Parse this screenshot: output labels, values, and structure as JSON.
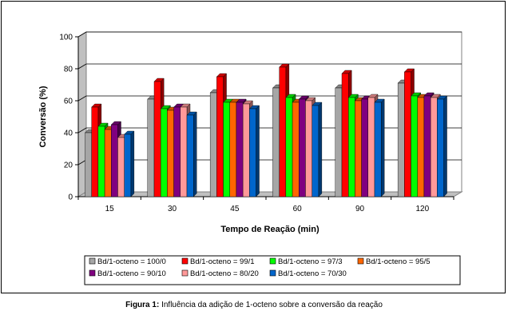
{
  "chart_data": {
    "type": "bar",
    "style": "3d-clustered-column",
    "xlabel": "Tempo de Reação (min)",
    "ylabel": "Conversão (%)",
    "ylim": [
      0,
      100
    ],
    "yticks": [
      0,
      20,
      40,
      60,
      80,
      100
    ],
    "categories": [
      "15",
      "30",
      "45",
      "60",
      "90",
      "120"
    ],
    "legend_position": "bottom",
    "series": [
      {
        "name": "Bd/1-octeno = 100/0",
        "color": "#a6a6a6",
        "values": [
          40,
          61,
          65,
          68,
          68,
          71
        ]
      },
      {
        "name": "Bd/1-octeno = 99/1",
        "color": "#ff0000",
        "values": [
          56,
          72,
          75,
          81,
          77,
          78
        ]
      },
      {
        "name": "Bd/1-octeno = 97/3",
        "color": "#00ff00",
        "values": [
          44,
          55,
          59,
          62,
          62,
          63
        ]
      },
      {
        "name": "Bd/1-octeno = 95/5",
        "color": "#ff6600",
        "values": [
          42,
          54,
          59,
          59,
          60,
          62
        ]
      },
      {
        "name": "Bd/1-octeno = 90/10",
        "color": "#800080",
        "values": [
          45,
          56,
          59,
          61,
          61,
          63
        ]
      },
      {
        "name": "Bd/1-octeno = 80/20",
        "color": "#ff9999",
        "values": [
          37,
          56,
          58,
          60,
          62,
          62
        ]
      },
      {
        "name": "Bd/1-octeno = 70/30",
        "color": "#0066cc",
        "values": [
          39,
          51,
          55,
          57,
          59,
          61
        ]
      }
    ]
  },
  "caption": {
    "label": "Figura 1:",
    "text": " Influência da adição de 1-octeno sobre a conversão da reação"
  }
}
